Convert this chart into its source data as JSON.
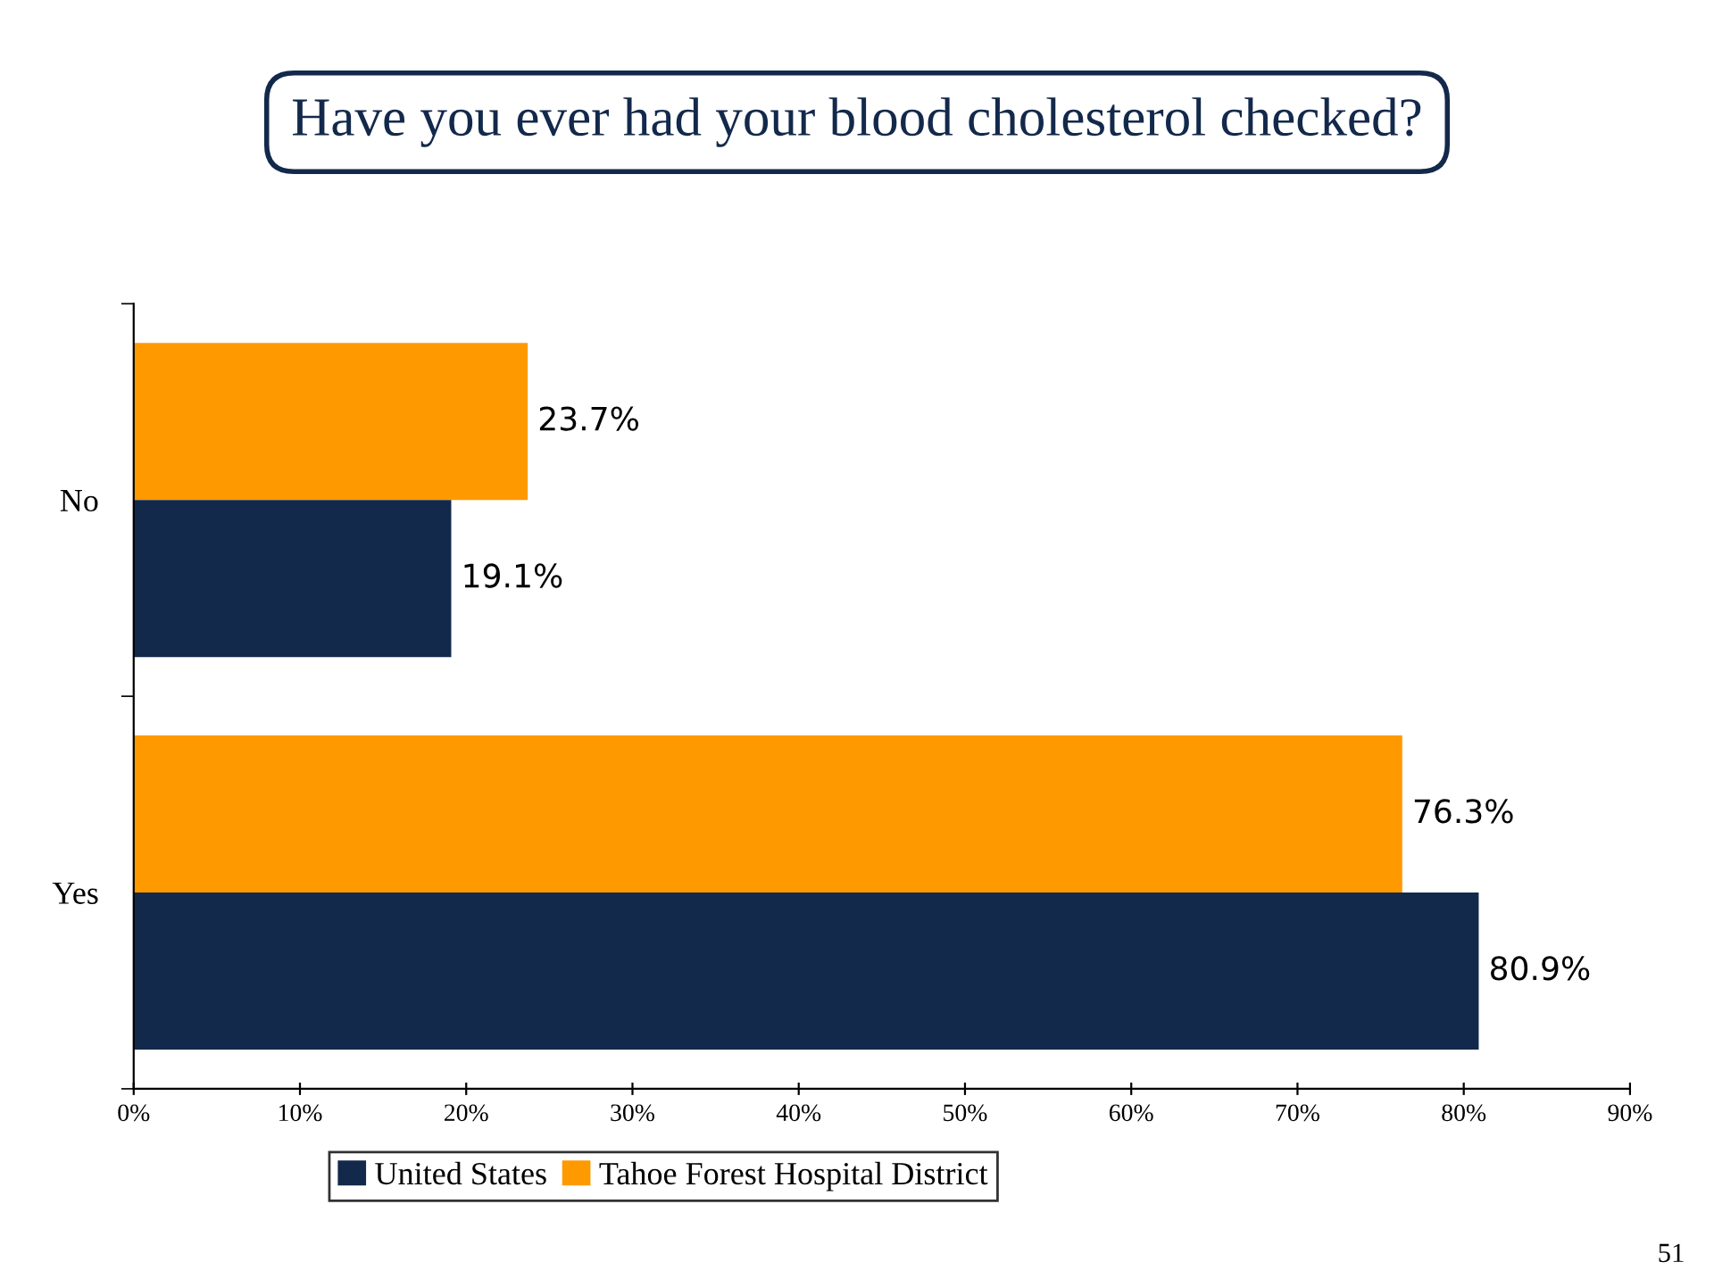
{
  "chart_data": {
    "type": "bar",
    "orientation": "horizontal",
    "title": "Have you ever had your blood cholesterol checked?",
    "categories": [
      "No",
      "Yes"
    ],
    "series": [
      {
        "name": "Tahoe Forest Hospital District",
        "color": "#ff9900",
        "values": [
          23.7,
          76.3
        ],
        "value_labels": [
          "23.7%",
          "76.3%"
        ]
      },
      {
        "name": "United States",
        "color": "#13294b",
        "values": [
          19.1,
          80.9
        ],
        "value_labels": [
          "19.1%",
          "80.9%"
        ]
      }
    ],
    "xlim": [
      0,
      90
    ],
    "xticks": [
      {
        "value": 0,
        "label": "0%"
      },
      {
        "value": 10,
        "label": "10%"
      },
      {
        "value": 20,
        "label": "20%"
      },
      {
        "value": 30,
        "label": "30%"
      },
      {
        "value": 40,
        "label": "40%"
      },
      {
        "value": 50,
        "label": "50%"
      },
      {
        "value": 60,
        "label": "60%"
      },
      {
        "value": 70,
        "label": "70%"
      },
      {
        "value": 80,
        "label": "80%"
      },
      {
        "value": 90,
        "label": "90%"
      }
    ],
    "legend": "bottom",
    "grid": false,
    "annotations": [
      "51"
    ]
  }
}
